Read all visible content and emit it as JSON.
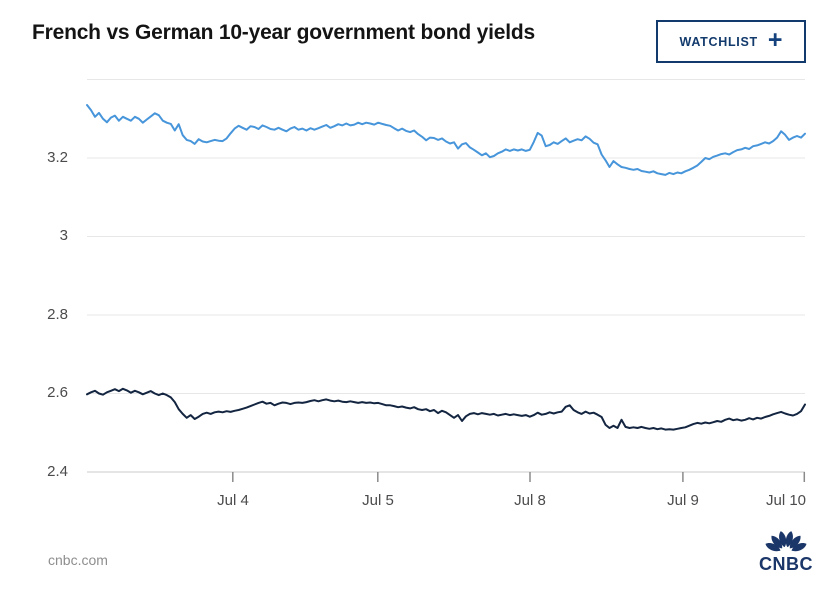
{
  "header": {
    "title": "French vs German 10-year government bond yields",
    "watchlist_label": "WATCHLIST",
    "watchlist_plus": "+"
  },
  "footer": {
    "source": "cnbc.com",
    "logo_text": "CNBC"
  },
  "colors": {
    "french_line": "#4795DA",
    "german_line": "#132540",
    "grid_line": "#E7E7E7",
    "axis_line": "#CBCBCB",
    "tick": "#8A8A8A",
    "label_text": "#4B4B4D",
    "cnbc_navy": "#1B3668",
    "watchlist_navy": "#123A6C"
  },
  "chart_data": {
    "type": "line",
    "title": "French vs German 10-year government bond yields",
    "xlabel": "",
    "ylabel": "",
    "ylim": [
      2.4,
      3.4
    ],
    "grid": "horizontal-only",
    "legend": "none",
    "y_gridlines": [
      3.4,
      3.2,
      3.0,
      2.8,
      2.6,
      2.4
    ],
    "y_ticks": [
      {
        "v": 3.2,
        "label": "3.2"
      },
      {
        "v": 3.0,
        "label": "3"
      },
      {
        "v": 2.8,
        "label": "2.8"
      },
      {
        "v": 2.6,
        "label": "2.6"
      },
      {
        "v": 2.4,
        "label": "2.4"
      }
    ],
    "x_ticks": [
      {
        "label": "Jul 4",
        "f": 0.203
      },
      {
        "label": "Jul 5",
        "f": 0.405
      },
      {
        "label": "Jul 8",
        "f": 0.617
      },
      {
        "label": "Jul 9",
        "f": 0.83
      },
      {
        "label": "Jul 10",
        "f": 0.999
      }
    ],
    "series": [
      {
        "id": "french-yield",
        "name": "French 10-year government bond yield",
        "color": "#4795DA",
        "values": [
          3.335,
          3.322,
          3.305,
          3.315,
          3.3,
          3.291,
          3.303,
          3.308,
          3.295,
          3.305,
          3.3,
          3.295,
          3.305,
          3.3,
          3.29,
          3.298,
          3.306,
          3.314,
          3.309,
          3.295,
          3.29,
          3.287,
          3.27,
          3.286,
          3.258,
          3.246,
          3.243,
          3.236,
          3.248,
          3.242,
          3.24,
          3.243,
          3.246,
          3.244,
          3.243,
          3.25,
          3.263,
          3.275,
          3.282,
          3.277,
          3.272,
          3.281,
          3.279,
          3.274,
          3.283,
          3.279,
          3.274,
          3.272,
          3.277,
          3.272,
          3.268,
          3.275,
          3.279,
          3.272,
          3.275,
          3.27,
          3.276,
          3.272,
          3.276,
          3.28,
          3.284,
          3.277,
          3.281,
          3.286,
          3.283,
          3.288,
          3.283,
          3.285,
          3.29,
          3.286,
          3.29,
          3.288,
          3.285,
          3.29,
          3.287,
          3.284,
          3.282,
          3.276,
          3.27,
          3.275,
          3.269,
          3.266,
          3.27,
          3.261,
          3.254,
          3.245,
          3.252,
          3.251,
          3.246,
          3.25,
          3.242,
          3.237,
          3.24,
          3.224,
          3.235,
          3.238,
          3.227,
          3.221,
          3.214,
          3.207,
          3.212,
          3.202,
          3.205,
          3.212,
          3.216,
          3.222,
          3.218,
          3.222,
          3.219,
          3.222,
          3.218,
          3.221,
          3.241,
          3.264,
          3.257,
          3.23,
          3.233,
          3.24,
          3.236,
          3.243,
          3.25,
          3.24,
          3.244,
          3.248,
          3.245,
          3.255,
          3.249,
          3.239,
          3.235,
          3.209,
          3.194,
          3.177,
          3.192,
          3.184,
          3.177,
          3.175,
          3.172,
          3.17,
          3.172,
          3.167,
          3.165,
          3.163,
          3.166,
          3.161,
          3.159,
          3.157,
          3.162,
          3.159,
          3.163,
          3.161,
          3.166,
          3.17,
          3.175,
          3.181,
          3.19,
          3.2,
          3.197,
          3.203,
          3.206,
          3.21,
          3.212,
          3.209,
          3.215,
          3.22,
          3.222,
          3.226,
          3.223,
          3.23,
          3.232,
          3.236,
          3.24,
          3.237,
          3.243,
          3.252,
          3.268,
          3.259,
          3.246,
          3.252,
          3.256,
          3.252,
          3.262
        ]
      },
      {
        "id": "german-yield",
        "name": "German 10-year government bond yield",
        "color": "#132540",
        "values": [
          2.598,
          2.603,
          2.607,
          2.6,
          2.597,
          2.603,
          2.607,
          2.611,
          2.606,
          2.612,
          2.608,
          2.602,
          2.607,
          2.603,
          2.598,
          2.602,
          2.606,
          2.6,
          2.596,
          2.6,
          2.596,
          2.59,
          2.578,
          2.56,
          2.548,
          2.538,
          2.545,
          2.535,
          2.541,
          2.548,
          2.551,
          2.548,
          2.552,
          2.554,
          2.552,
          2.555,
          2.553,
          2.556,
          2.558,
          2.561,
          2.564,
          2.568,
          2.572,
          2.576,
          2.579,
          2.574,
          2.576,
          2.57,
          2.574,
          2.577,
          2.576,
          2.573,
          2.576,
          2.577,
          2.576,
          2.578,
          2.581,
          2.583,
          2.58,
          2.583,
          2.585,
          2.582,
          2.58,
          2.582,
          2.579,
          2.578,
          2.58,
          2.578,
          2.576,
          2.578,
          2.576,
          2.577,
          2.575,
          2.576,
          2.573,
          2.57,
          2.57,
          2.568,
          2.565,
          2.567,
          2.564,
          2.562,
          2.565,
          2.56,
          2.558,
          2.56,
          2.555,
          2.558,
          2.55,
          2.556,
          2.552,
          2.545,
          2.538,
          2.545,
          2.53,
          2.542,
          2.548,
          2.55,
          2.547,
          2.55,
          2.548,
          2.546,
          2.548,
          2.544,
          2.546,
          2.548,
          2.545,
          2.547,
          2.545,
          2.543,
          2.545,
          2.541,
          2.545,
          2.551,
          2.546,
          2.548,
          2.552,
          2.549,
          2.552,
          2.554,
          2.566,
          2.57,
          2.558,
          2.552,
          2.548,
          2.554,
          2.549,
          2.551,
          2.546,
          2.54,
          2.52,
          2.512,
          2.518,
          2.512,
          2.533,
          2.515,
          2.512,
          2.514,
          2.512,
          2.515,
          2.512,
          2.51,
          2.512,
          2.509,
          2.511,
          2.508,
          2.509,
          2.508,
          2.51,
          2.512,
          2.514,
          2.518,
          2.522,
          2.525,
          2.523,
          2.526,
          2.524,
          2.527,
          2.53,
          2.528,
          2.533,
          2.536,
          2.532,
          2.534,
          2.531,
          2.533,
          2.537,
          2.534,
          2.538,
          2.536,
          2.54,
          2.543,
          2.547,
          2.55,
          2.553,
          2.549,
          2.546,
          2.544,
          2.548,
          2.555,
          2.572
        ]
      }
    ]
  }
}
